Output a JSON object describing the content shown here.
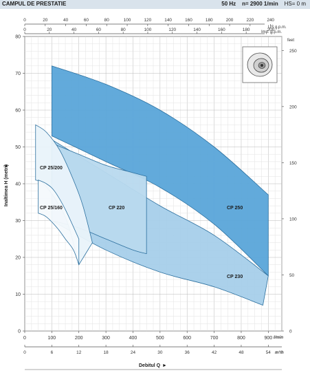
{
  "header": {
    "title": "CAMPUL DE PRESTATIE",
    "frequency": "50 Hz",
    "speed": "n= 2900  1/min",
    "hs": "HS= 0 m"
  },
  "chart_data": {
    "type": "area",
    "title": "CAMPUL DE PRESTATIE",
    "ylabel": "Inaltimea H (metri)",
    "xlabel": "Debitul Q",
    "x_unit": "l/min",
    "x2_unit": "m³/h",
    "us_unit": "US g.p.m.",
    "imp_unit": "Imp. g.p.m.",
    "feet_unit": "feet",
    "xlim": [
      0,
      950
    ],
    "ylim": [
      0,
      80
    ],
    "x_ticks": [
      0,
      100,
      200,
      300,
      400,
      500,
      600,
      700,
      800,
      900
    ],
    "y_ticks": [
      0,
      10,
      20,
      30,
      40,
      50,
      60,
      70,
      80
    ],
    "m3h_ticks": [
      0,
      6,
      12,
      18,
      24,
      30,
      36,
      42,
      48,
      54
    ],
    "us_gpm_ticks": [
      0,
      20,
      40,
      60,
      80,
      100,
      120,
      140,
      160,
      180,
      200,
      220,
      240
    ],
    "imp_gpm_ticks": [
      0,
      20,
      40,
      60,
      80,
      100,
      120,
      140,
      160,
      180,
      200
    ],
    "feet_ticks": [
      0,
      50,
      100,
      150,
      200,
      250
    ],
    "grid": true,
    "series": [
      {
        "name": "CP 25/200",
        "color": "#e9f3fa",
        "upper": [
          [
            40,
            56
          ],
          [
            80,
            54
          ],
          [
            130,
            49
          ],
          [
            180,
            41
          ],
          [
            215,
            34
          ],
          [
            250,
            24
          ]
        ],
        "lower": [
          [
            40,
            41
          ],
          [
            70,
            40
          ],
          [
            120,
            35
          ],
          [
            160,
            29
          ],
          [
            200,
            18
          ]
        ]
      },
      {
        "name": "CP 25/160",
        "color": "#f4f9fc",
        "upper": [
          [
            50,
            41
          ],
          [
            80,
            40
          ],
          [
            110,
            38
          ],
          [
            150,
            33
          ],
          [
            200,
            25
          ]
        ],
        "lower": [
          [
            50,
            32
          ],
          [
            80,
            31
          ],
          [
            120,
            28
          ],
          [
            150,
            25
          ],
          [
            180,
            22
          ],
          [
            200,
            18
          ]
        ]
      },
      {
        "name": "CP 220",
        "color": "#b8d9ee",
        "upper": [
          [
            100,
            51
          ],
          [
            200,
            48
          ],
          [
            300,
            45
          ],
          [
            400,
            43
          ],
          [
            450,
            42
          ]
        ],
        "lower": [
          [
            100,
            30
          ],
          [
            200,
            28
          ],
          [
            300,
            25
          ],
          [
            400,
            22
          ],
          [
            450,
            21
          ]
        ]
      },
      {
        "name": "CP 230",
        "color": "#a6cfea",
        "upper": [
          [
            100,
            52
          ],
          [
            300,
            43
          ],
          [
            500,
            34
          ],
          [
            700,
            26
          ],
          [
            900,
            15
          ]
        ],
        "lower": [
          [
            100,
            30
          ],
          [
            300,
            22
          ],
          [
            500,
            16
          ],
          [
            700,
            12
          ],
          [
            880,
            7
          ]
        ]
      },
      {
        "name": "CP 250",
        "color": "#5aa5d9",
        "upper": [
          [
            100,
            72
          ],
          [
            300,
            67
          ],
          [
            500,
            60
          ],
          [
            700,
            50
          ],
          [
            900,
            37
          ]
        ],
        "lower": [
          [
            100,
            53
          ],
          [
            300,
            46
          ],
          [
            500,
            39
          ],
          [
            700,
            29
          ],
          [
            900,
            15
          ]
        ]
      }
    ]
  }
}
